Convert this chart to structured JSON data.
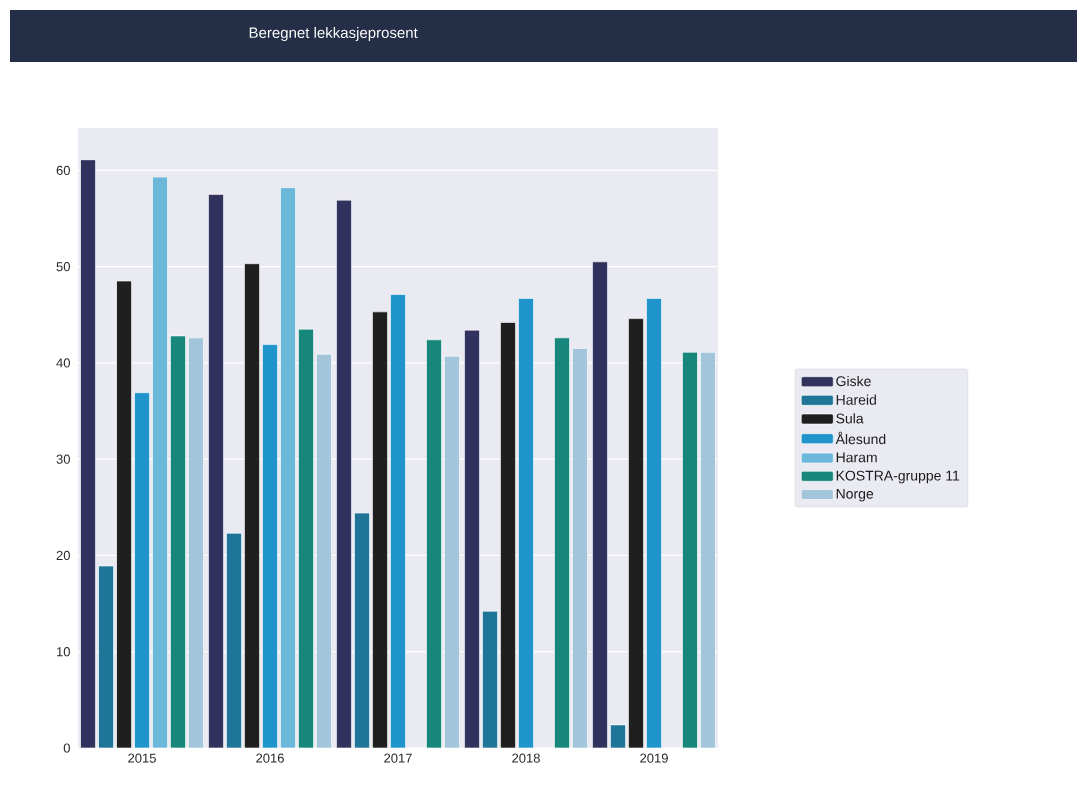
{
  "chart_data": {
    "type": "bar",
    "title": "Beregnet lekkasjeprosent",
    "categories": [
      "2015",
      "2016",
      "2017",
      "2018",
      "2019"
    ],
    "series": [
      {
        "name": "Giske",
        "color": "#32325e",
        "values": [
          61.1,
          57.5,
          56.9,
          43.4,
          50.5
        ]
      },
      {
        "name": "Hareid",
        "color": "#1f7597",
        "values": [
          18.9,
          22.3,
          24.4,
          14.2,
          2.4
        ]
      },
      {
        "name": "Sula",
        "color": "#1f1f1f",
        "values": [
          48.5,
          50.3,
          45.3,
          44.2,
          44.6
        ]
      },
      {
        "name": "Ålesund",
        "color": "#1f95cb",
        "values": [
          36.9,
          41.9,
          47.1,
          46.7,
          46.7
        ]
      },
      {
        "name": "Haram",
        "color": "#6cb8da",
        "values": [
          59.3,
          58.2,
          null,
          null,
          null
        ]
      },
      {
        "name": "KOSTRA-gruppe 11",
        "color": "#16877a",
        "values": [
          42.8,
          43.5,
          42.4,
          42.6,
          41.1
        ]
      },
      {
        "name": "Norge",
        "color": "#a2c5da",
        "values": [
          42.6,
          40.9,
          40.7,
          41.5,
          41.1
        ]
      }
    ],
    "ylim": [
      0,
      64.4
    ],
    "yticks": [
      0,
      10,
      20,
      30,
      40,
      50,
      60
    ],
    "grid": "y",
    "legend": "right"
  }
}
